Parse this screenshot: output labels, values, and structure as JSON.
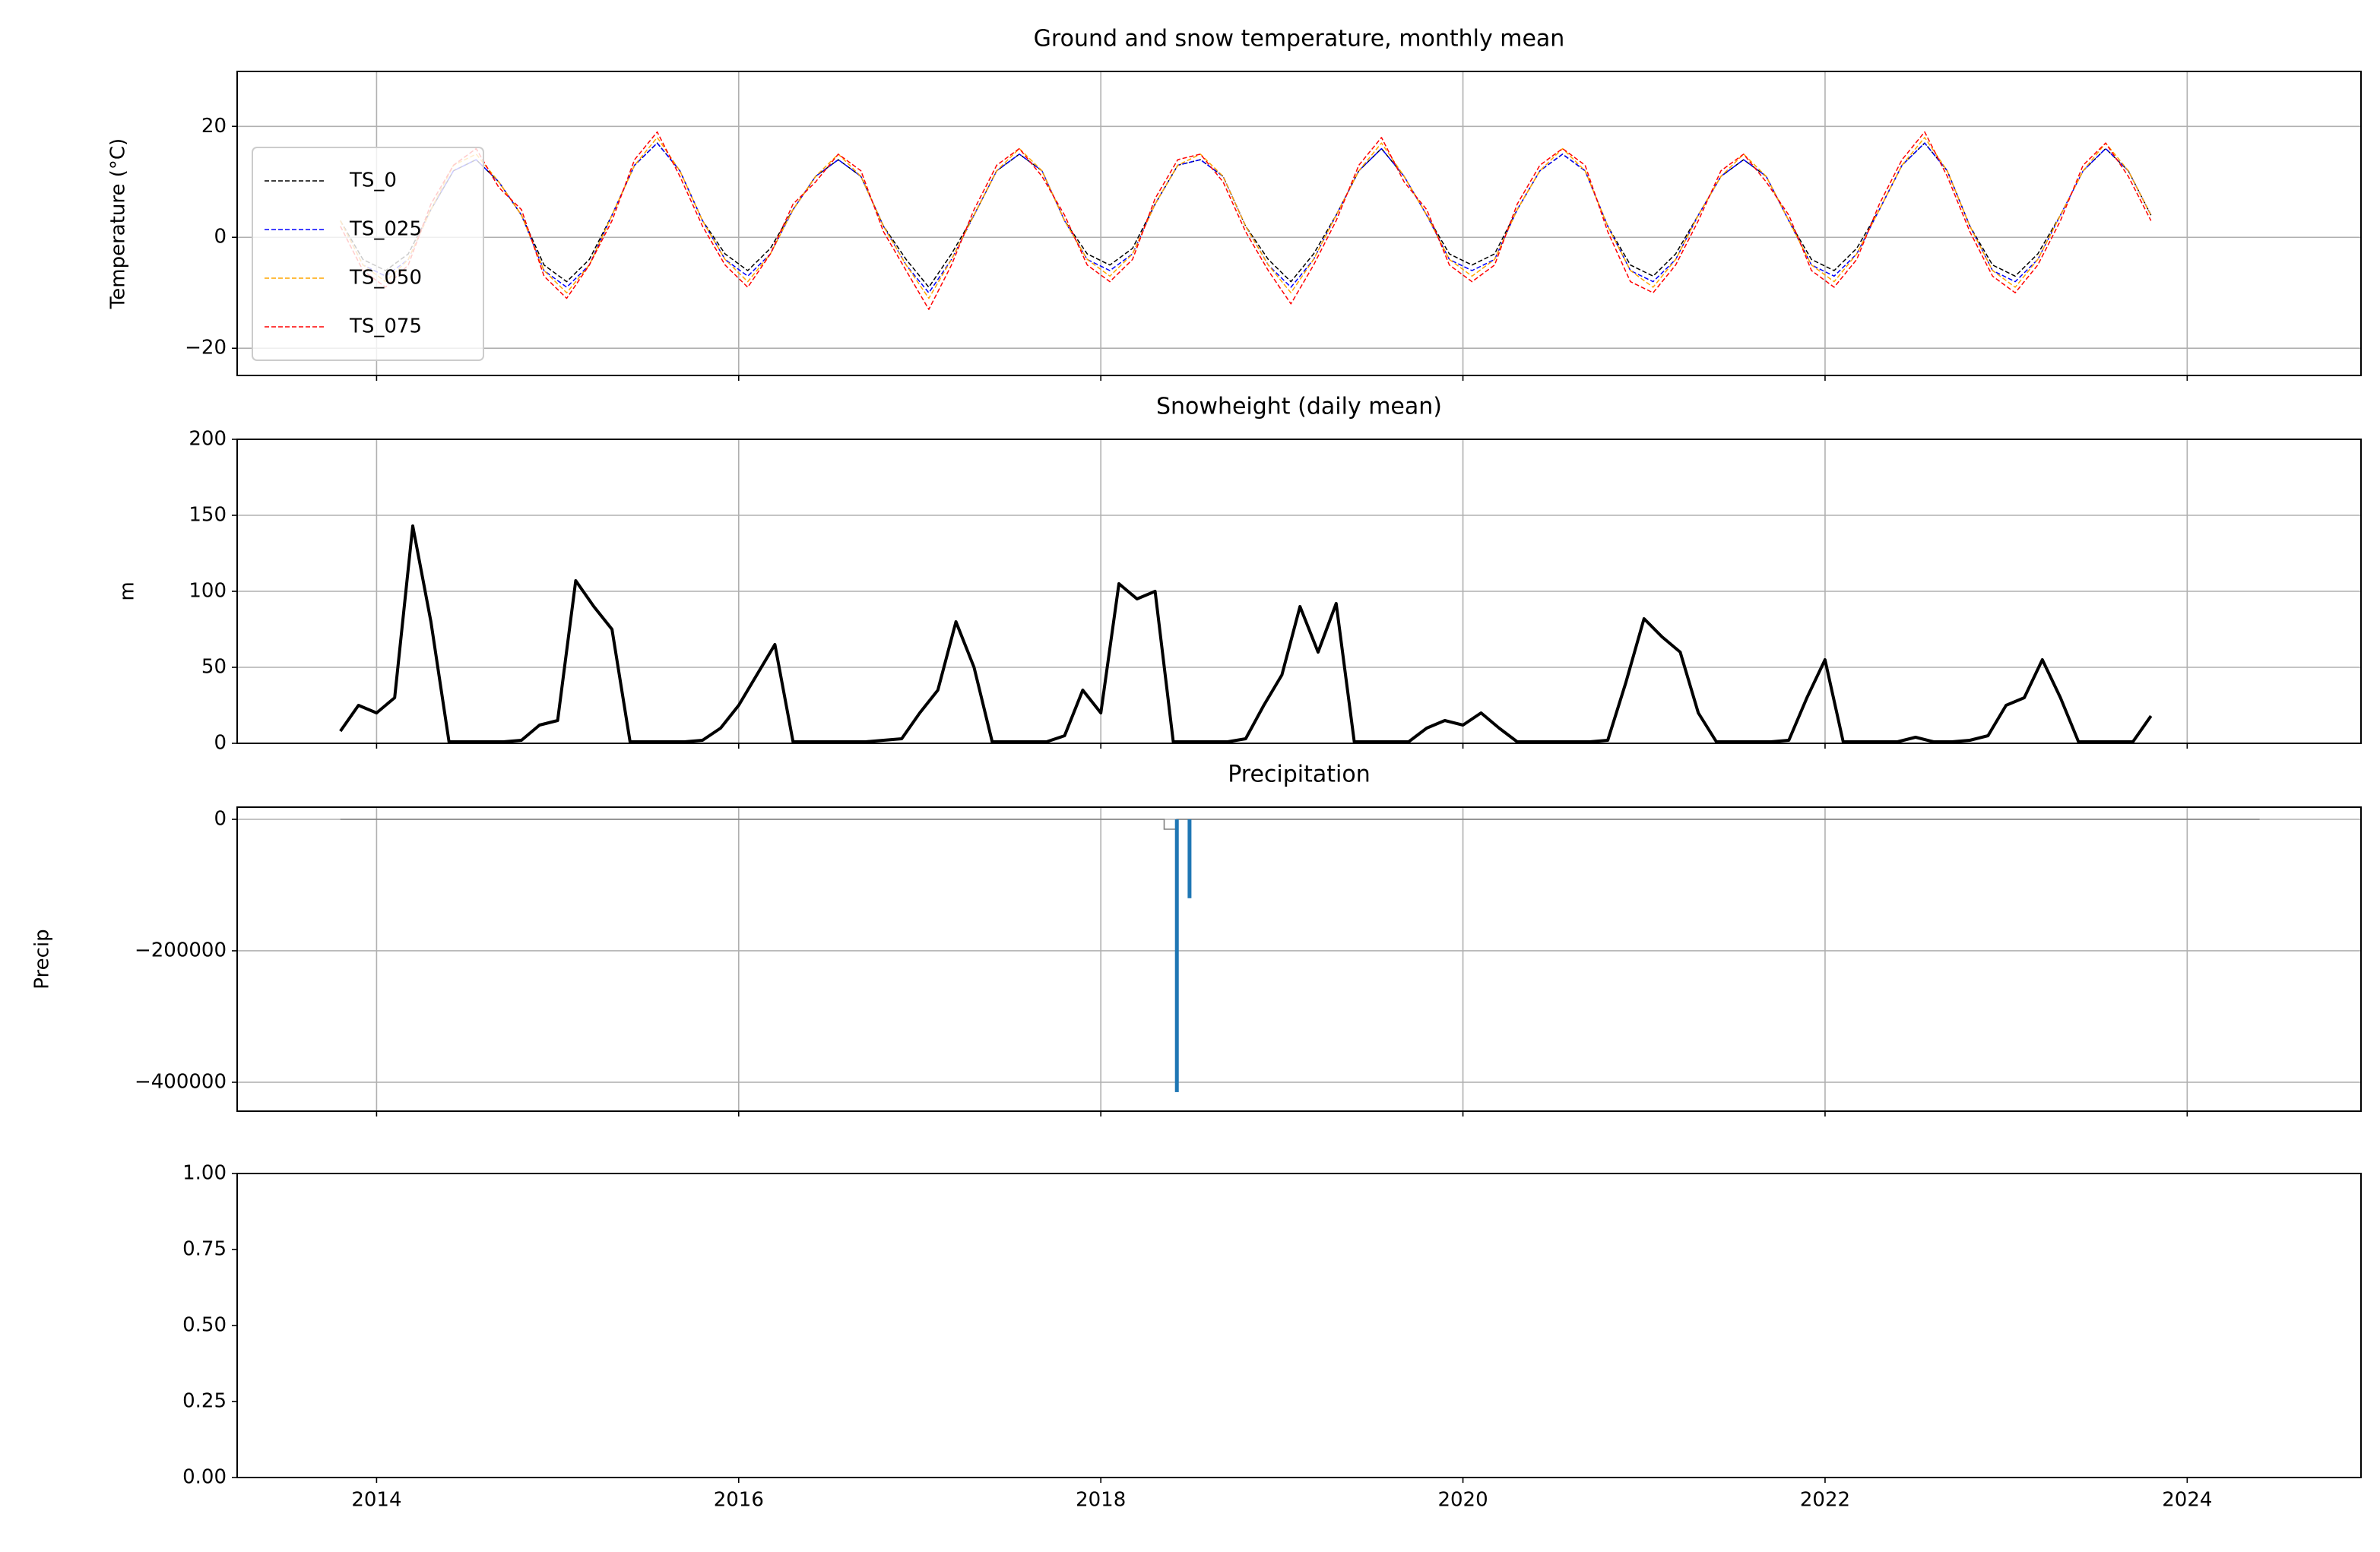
{
  "chart_data": [
    {
      "type": "line",
      "title": "Ground and snow temperature, monthly mean",
      "ylabel": "Temperature (°C)",
      "xlim": [
        2013.23,
        2024.96
      ],
      "xticks": [
        2014,
        2016,
        2018,
        2020,
        2022,
        2024
      ],
      "show_xtick_labels": false,
      "ylim": [
        -24.9,
        29.9
      ],
      "yticks": [
        {
          "value": -20,
          "label": "−20"
        },
        0,
        20
      ],
      "grid": true,
      "legend": "lower left",
      "dashed": true,
      "x": [
        2013.8,
        2013.925,
        2014.05,
        2014.175,
        2014.3,
        2014.425,
        2014.55,
        2014.675,
        2014.8,
        2014.925,
        2015.05,
        2015.175,
        2015.3,
        2015.425,
        2015.55,
        2015.675,
        2015.8,
        2015.925,
        2016.05,
        2016.175,
        2016.3,
        2016.425,
        2016.55,
        2016.675,
        2016.8,
        2016.925,
        2017.05,
        2017.175,
        2017.3,
        2017.425,
        2017.55,
        2017.675,
        2017.8,
        2017.925,
        2018.05,
        2018.175,
        2018.3,
        2018.425,
        2018.55,
        2018.675,
        2018.8,
        2018.925,
        2019.05,
        2019.175,
        2019.3,
        2019.425,
        2019.55,
        2019.675,
        2019.8,
        2019.925,
        2020.05,
        2020.175,
        2020.3,
        2020.425,
        2020.55,
        2020.675,
        2020.8,
        2020.925,
        2021.05,
        2021.175,
        2021.3,
        2021.425,
        2021.55,
        2021.675,
        2021.8,
        2021.925,
        2022.05,
        2022.175,
        2022.3,
        2022.425,
        2022.55,
        2022.675,
        2022.8,
        2022.925,
        2023.05,
        2023.175,
        2023.3,
        2023.425,
        2023.55,
        2023.675,
        2023.8
      ],
      "series": [
        {
          "name": "TS_0",
          "color": "#000000",
          "values": [
            3,
            -4,
            -6,
            -3,
            5,
            12,
            14,
            10,
            4,
            -5,
            -8,
            -4,
            4,
            13,
            17,
            12,
            3,
            -3,
            -6,
            -2,
            5,
            11,
            14,
            11,
            2,
            -4,
            -9,
            -3,
            4,
            12,
            15,
            12,
            3,
            -3,
            -5,
            -2,
            6,
            13,
            14,
            11,
            2,
            -4,
            -8,
            -3,
            4,
            12,
            16,
            11,
            4,
            -3,
            -5,
            -3,
            5,
            12,
            15,
            12,
            2,
            -5,
            -7,
            -3,
            4,
            11,
            14,
            11,
            3,
            -4,
            -6,
            -2,
            5,
            13,
            17,
            12,
            2,
            -5,
            -7,
            -3,
            4,
            12,
            16,
            12,
            4
          ]
        },
        {
          "name": "TS_025",
          "color": "#0000ff",
          "values": [
            3,
            -5,
            -7,
            -4,
            5,
            12,
            14,
            10,
            4,
            -6,
            -9,
            -5,
            4,
            13,
            17,
            12,
            3,
            -4,
            -7,
            -3,
            5,
            11,
            14,
            11,
            2,
            -5,
            -10,
            -4,
            4,
            12,
            15,
            12,
            3,
            -4,
            -6,
            -3,
            6,
            13,
            14,
            11,
            2,
            -5,
            -9,
            -4,
            4,
            12,
            16,
            11,
            4,
            -4,
            -6,
            -4,
            5,
            12,
            15,
            12,
            2,
            -6,
            -8,
            -4,
            4,
            11,
            14,
            11,
            3,
            -5,
            -7,
            -3,
            5,
            13,
            17,
            12,
            2,
            -6,
            -8,
            -4,
            4,
            12,
            16,
            12,
            4
          ]
        },
        {
          "name": "TS_050",
          "color": "#ffa500",
          "values": [
            3,
            -5,
            -8,
            -4,
            5,
            13,
            15,
            10,
            4,
            -6,
            -10,
            -5,
            4,
            13,
            18,
            12,
            3,
            -4,
            -8,
            -3,
            5,
            11,
            15,
            11,
            2,
            -5,
            -11,
            -4,
            4,
            12,
            16,
            12,
            3,
            -4,
            -7,
            -3,
            6,
            13,
            15,
            11,
            2,
            -5,
            -10,
            -4,
            4,
            12,
            17,
            11,
            4,
            -4,
            -7,
            -4,
            5,
            12,
            16,
            12,
            2,
            -6,
            -9,
            -4,
            4,
            11,
            15,
            11,
            3,
            -5,
            -8,
            -3,
            5,
            13,
            18,
            12,
            2,
            -6,
            -9,
            -4,
            4,
            12,
            17,
            12,
            4
          ]
        },
        {
          "name": "TS_075",
          "color": "#ff0000",
          "values": [
            2,
            -6,
            -9,
            -5,
            6,
            13,
            16,
            9,
            5,
            -7,
            -11,
            -5,
            3,
            14,
            19,
            11,
            2,
            -5,
            -9,
            -3,
            6,
            10,
            15,
            12,
            1,
            -6,
            -13,
            -5,
            5,
            13,
            16,
            11,
            4,
            -5,
            -8,
            -4,
            7,
            14,
            15,
            10,
            1,
            -6,
            -12,
            -5,
            3,
            13,
            18,
            10,
            5,
            -5,
            -8,
            -5,
            6,
            13,
            16,
            13,
            1,
            -8,
            -10,
            -5,
            3,
            12,
            15,
            10,
            4,
            -6,
            -9,
            -4,
            6,
            14,
            19,
            11,
            1,
            -7,
            -10,
            -5,
            3,
            13,
            17,
            11,
            3
          ]
        }
      ]
    },
    {
      "type": "line",
      "title": "Snowheight (daily mean)",
      "ylabel": "m",
      "xlim": [
        2013.23,
        2024.96
      ],
      "xticks": [
        2014,
        2016,
        2018,
        2020,
        2022,
        2024
      ],
      "show_xtick_labels": false,
      "ylim": [
        0,
        200
      ],
      "yticks": [
        0,
        50,
        100,
        150,
        200
      ],
      "grid": true,
      "line_width": 4,
      "x": [
        2013.8,
        2013.9,
        2014.0,
        2014.1,
        2014.2,
        2014.3,
        2014.4,
        2014.5,
        2014.6,
        2014.7,
        2014.8,
        2014.9,
        2015.0,
        2015.1,
        2015.2,
        2015.3,
        2015.4,
        2015.5,
        2015.6,
        2015.7,
        2015.8,
        2015.9,
        2016.0,
        2016.1,
        2016.2,
        2016.3,
        2016.4,
        2016.5,
        2016.6,
        2016.7,
        2016.8,
        2016.9,
        2017.0,
        2017.1,
        2017.2,
        2017.3,
        2017.4,
        2017.5,
        2017.6,
        2017.7,
        2017.8,
        2017.9,
        2018.0,
        2018.1,
        2018.2,
        2018.3,
        2018.4,
        2018.5,
        2018.6,
        2018.7,
        2018.8,
        2018.9,
        2019.0,
        2019.1,
        2019.2,
        2019.3,
        2019.4,
        2019.5,
        2019.6,
        2019.7,
        2019.8,
        2019.9,
        2020.0,
        2020.1,
        2020.2,
        2020.3,
        2020.4,
        2020.5,
        2020.6,
        2020.7,
        2020.8,
        2020.9,
        2021.0,
        2021.1,
        2021.2,
        2021.3,
        2021.4,
        2021.5,
        2021.6,
        2021.7,
        2021.8,
        2021.9,
        2022.0,
        2022.1,
        2022.2,
        2022.3,
        2022.4,
        2022.5,
        2022.6,
        2022.7,
        2022.8,
        2022.9,
        2023.0,
        2023.1,
        2023.2,
        2023.3,
        2023.4,
        2023.5,
        2023.6,
        2023.7,
        2023.8
      ],
      "series": [
        {
          "color": "#000000",
          "values": [
            8,
            25,
            20,
            30,
            143,
            80,
            1,
            1,
            1,
            1,
            2,
            12,
            15,
            107,
            90,
            75,
            1,
            1,
            1,
            1,
            2,
            10,
            25,
            45,
            65,
            1,
            1,
            1,
            1,
            1,
            2,
            3,
            20,
            35,
            80,
            50,
            1,
            1,
            1,
            1,
            5,
            35,
            20,
            105,
            95,
            100,
            1,
            1,
            1,
            1,
            3,
            25,
            45,
            90,
            60,
            92,
            1,
            1,
            1,
            1,
            10,
            15,
            12,
            20,
            10,
            1,
            1,
            1,
            1,
            1,
            2,
            40,
            82,
            70,
            60,
            20,
            1,
            1,
            1,
            1,
            2,
            30,
            55,
            1,
            1,
            1,
            1,
            4,
            1,
            1,
            2,
            5,
            25,
            30,
            55,
            30,
            1,
            1,
            1,
            1,
            18
          ]
        }
      ]
    },
    {
      "type": "bar",
      "title": "Precipitation",
      "ylabel": "Precip",
      "xlim": [
        2013.23,
        2024.96
      ],
      "xticks": [
        2014,
        2016,
        2018,
        2020,
        2022,
        2024
      ],
      "show_xtick_labels": false,
      "ylim": [
        -444000,
        18500
      ],
      "yticks": [
        {
          "value": -400000,
          "label": "−400000"
        },
        {
          "value": -200000,
          "label": "−200000"
        },
        0
      ],
      "grid": true,
      "x": [
        2018.42,
        2018.49
      ],
      "values": [
        -415000,
        -120000
      ],
      "color": "#1f77b4",
      "baseline": {
        "x": [
          2013.8,
          2018.35,
          2018.35,
          2018.42,
          2018.42,
          2024.4
        ],
        "values": [
          0,
          0,
          -15000,
          -15000,
          0,
          0
        ],
        "color": "#808080"
      }
    },
    {
      "type": "line",
      "xlim": [
        2013.23,
        2024.96
      ],
      "xticks": [
        2014,
        2016,
        2018,
        2020,
        2022,
        2024
      ],
      "show_xtick_labels": true,
      "ylim": [
        0,
        1
      ],
      "yticks": [
        {
          "value": 0,
          "label": "0.00"
        },
        {
          "value": 0.25,
          "label": "0.25"
        },
        {
          "value": 0.5,
          "label": "0.50"
        },
        {
          "value": 0.75,
          "label": "0.75"
        },
        {
          "value": 1,
          "label": "1.00"
        }
      ],
      "grid": false
    }
  ]
}
